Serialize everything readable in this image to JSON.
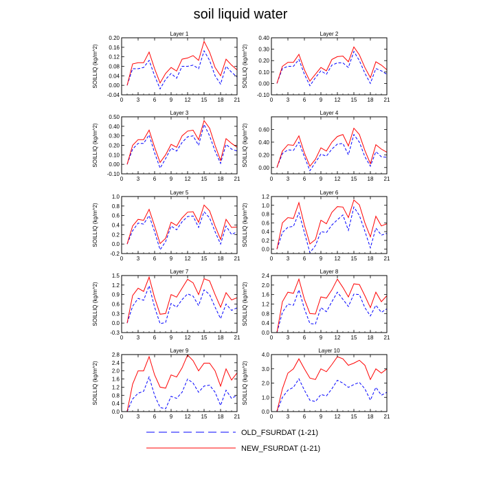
{
  "title": "soil liquid water",
  "legend": [
    {
      "label": "OLD_FSURDAT (1-21)",
      "color": "#0000ff",
      "dash": true
    },
    {
      "label": "NEW_FSURDAT (1-21)",
      "color": "#ff0000",
      "dash": false
    }
  ],
  "chart_data": [
    {
      "type": "line",
      "title": "Layer 1",
      "ylabel": "SOILLIQ  (kg/m^2)",
      "x": [
        1,
        2,
        3,
        4,
        5,
        6,
        7,
        8,
        9,
        10,
        11,
        12,
        13,
        14,
        15,
        16,
        17,
        18,
        19,
        20,
        21
      ],
      "xticks": [
        0,
        3,
        6,
        9,
        12,
        15,
        18,
        21
      ],
      "xlim": [
        0,
        21
      ],
      "yticks": [
        -0.04,
        0.0,
        0.04,
        0.08,
        0.12,
        0.16,
        0.2
      ],
      "ytick_labels": [
        "-0.04",
        "0.00",
        "0.04",
        "0.08",
        "0.12",
        "0.16",
        "0.20"
      ],
      "ylim": [
        -0.04,
        0.2
      ],
      "series": [
        {
          "name": "OLD_FSURDAT (1-21)",
          "values": [
            0.0,
            0.07,
            0.07,
            0.075,
            0.105,
            0.04,
            -0.015,
            0.025,
            0.05,
            0.03,
            0.08,
            0.08,
            0.085,
            0.07,
            0.145,
            0.105,
            0.04,
            0.005,
            0.08,
            0.055,
            0.035
          ]
        },
        {
          "name": "NEW_FSURDAT (1-21)",
          "values": [
            0.0,
            0.09,
            0.095,
            0.095,
            0.14,
            0.07,
            0.01,
            0.05,
            0.075,
            0.06,
            0.11,
            0.115,
            0.125,
            0.105,
            0.185,
            0.14,
            0.075,
            0.04,
            0.11,
            0.085,
            0.065
          ]
        }
      ]
    },
    {
      "type": "line",
      "title": "Layer 2",
      "ylabel": "SOILLIQ  (kg/m^2)",
      "x": [
        1,
        2,
        3,
        4,
        5,
        6,
        7,
        8,
        9,
        10,
        11,
        12,
        13,
        14,
        15,
        16,
        17,
        18,
        19,
        20,
        21
      ],
      "xticks": [
        0,
        3,
        6,
        9,
        12,
        15,
        18,
        21
      ],
      "xlim": [
        0,
        21
      ],
      "yticks": [
        -0.1,
        0.0,
        0.1,
        0.2,
        0.3,
        0.4
      ],
      "ytick_labels": [
        "-0.10",
        "0.00",
        "0.10",
        "0.20",
        "0.30",
        "0.40"
      ],
      "ylim": [
        -0.1,
        0.4
      ],
      "series": [
        {
          "name": "OLD_FSURDAT (1-21)",
          "values": [
            0.0,
            0.13,
            0.15,
            0.15,
            0.21,
            0.08,
            -0.02,
            0.05,
            0.11,
            0.08,
            0.16,
            0.18,
            0.18,
            0.14,
            0.28,
            0.2,
            0.09,
            0.0,
            0.13,
            0.11,
            0.08
          ]
        },
        {
          "name": "NEW_FSURDAT (1-21)",
          "values": [
            0.0,
            0.15,
            0.185,
            0.185,
            0.255,
            0.12,
            0.02,
            0.08,
            0.14,
            0.11,
            0.21,
            0.235,
            0.24,
            0.19,
            0.32,
            0.25,
            0.14,
            0.05,
            0.19,
            0.16,
            0.12
          ]
        }
      ]
    },
    {
      "type": "line",
      "title": "Layer 3",
      "ylabel": "SOILLIQ  (kg/m^2)",
      "x": [
        1,
        2,
        3,
        4,
        5,
        6,
        7,
        8,
        9,
        10,
        11,
        12,
        13,
        14,
        15,
        16,
        17,
        18,
        19,
        20,
        21
      ],
      "xticks": [
        0,
        3,
        6,
        9,
        12,
        15,
        18,
        21
      ],
      "xlim": [
        0,
        21
      ],
      "yticks": [
        -0.1,
        0.0,
        0.1,
        0.2,
        0.3,
        0.4,
        0.5
      ],
      "ytick_labels": [
        "-0.10",
        "0.00",
        "0.10",
        "0.20",
        "0.30",
        "0.40",
        "0.50"
      ],
      "ylim": [
        -0.1,
        0.5
      ],
      "series": [
        {
          "name": "OLD_FSURDAT (1-21)",
          "values": [
            0.0,
            0.16,
            0.22,
            0.22,
            0.31,
            0.12,
            -0.04,
            0.06,
            0.17,
            0.14,
            0.23,
            0.29,
            0.3,
            0.2,
            0.42,
            0.3,
            0.14,
            0.01,
            0.21,
            0.16,
            0.14
          ]
        },
        {
          "name": "NEW_FSURDAT (1-21)",
          "values": [
            0.0,
            0.2,
            0.26,
            0.26,
            0.36,
            0.18,
            0.02,
            0.1,
            0.21,
            0.18,
            0.3,
            0.35,
            0.36,
            0.26,
            0.46,
            0.38,
            0.2,
            0.04,
            0.27,
            0.22,
            0.18
          ]
        }
      ]
    },
    {
      "type": "line",
      "title": "Layer 4",
      "ylabel": "SOILLIQ  (kg/m^2)",
      "x": [
        1,
        2,
        3,
        4,
        5,
        6,
        7,
        8,
        9,
        10,
        11,
        12,
        13,
        14,
        15,
        16,
        17,
        18,
        19,
        20,
        21
      ],
      "xticks": [
        0,
        3,
        6,
        9,
        12,
        15,
        18,
        21
      ],
      "xlim": [
        0,
        21
      ],
      "yticks": [
        0.0,
        0.2,
        0.4,
        0.6
      ],
      "ytick_labels": [
        "0.00",
        "0.20",
        "0.40",
        "0.60"
      ],
      "ylim": [
        -0.1,
        0.8
      ],
      "series": [
        {
          "name": "OLD_FSURDAT (1-21)",
          "values": [
            0.0,
            0.22,
            0.28,
            0.27,
            0.4,
            0.17,
            -0.05,
            0.08,
            0.21,
            0.18,
            0.29,
            0.37,
            0.38,
            0.2,
            0.52,
            0.4,
            0.17,
            0.02,
            0.25,
            0.17,
            0.16
          ]
        },
        {
          "name": "NEW_FSURDAT (1-21)",
          "values": [
            0.0,
            0.26,
            0.36,
            0.35,
            0.5,
            0.23,
            0.02,
            0.13,
            0.31,
            0.26,
            0.4,
            0.49,
            0.52,
            0.34,
            0.62,
            0.52,
            0.27,
            0.06,
            0.36,
            0.29,
            0.24
          ]
        }
      ]
    },
    {
      "type": "line",
      "title": "Layer 5",
      "ylabel": "SOILLIQ  (kg/m^2)",
      "x": [
        1,
        2,
        3,
        4,
        5,
        6,
        7,
        8,
        9,
        10,
        11,
        12,
        13,
        14,
        15,
        16,
        17,
        18,
        19,
        20,
        21
      ],
      "xticks": [
        0,
        3,
        6,
        9,
        12,
        15,
        18,
        21
      ],
      "xlim": [
        0,
        21
      ],
      "yticks": [
        -0.2,
        0.0,
        0.2,
        0.4,
        0.6,
        0.8,
        1.0
      ],
      "ytick_labels": [
        "-0.2",
        "0.0",
        "0.2",
        "0.4",
        "0.6",
        "0.8",
        "1.0"
      ],
      "ylim": [
        -0.2,
        1.0
      ],
      "series": [
        {
          "name": "OLD_FSURDAT (1-21)",
          "values": [
            0.0,
            0.28,
            0.44,
            0.42,
            0.6,
            0.26,
            -0.12,
            0.05,
            0.38,
            0.3,
            0.47,
            0.58,
            0.59,
            0.35,
            0.68,
            0.55,
            0.26,
            0.0,
            0.38,
            0.2,
            0.26
          ]
        },
        {
          "name": "NEW_FSURDAT (1-21)",
          "values": [
            0.0,
            0.38,
            0.52,
            0.5,
            0.73,
            0.38,
            0.01,
            0.12,
            0.46,
            0.39,
            0.55,
            0.67,
            0.68,
            0.46,
            0.82,
            0.7,
            0.38,
            0.1,
            0.52,
            0.35,
            0.36
          ]
        }
      ]
    },
    {
      "type": "line",
      "title": "Layer 6",
      "ylabel": "SOILLIQ  (kg/m^2)",
      "x": [
        1,
        2,
        3,
        4,
        5,
        6,
        7,
        8,
        9,
        10,
        11,
        12,
        13,
        14,
        15,
        16,
        17,
        18,
        19,
        20,
        21
      ],
      "xticks": [
        0,
        3,
        6,
        9,
        12,
        15,
        18,
        21
      ],
      "xlim": [
        0,
        21
      ],
      "yticks": [
        0.0,
        0.2,
        0.4,
        0.6,
        0.8,
        1.0,
        1.2
      ],
      "ytick_labels": [
        "0.0",
        "0.2",
        "0.4",
        "0.6",
        "0.8",
        "1.0",
        "1.2"
      ],
      "ylim": [
        -0.1,
        1.2
      ],
      "series": [
        {
          "name": "OLD_FSURDAT (1-21)",
          "values": [
            0.0,
            0.38,
            0.5,
            0.52,
            0.83,
            0.38,
            -0.08,
            0.08,
            0.4,
            0.38,
            0.55,
            0.67,
            0.78,
            0.43,
            0.96,
            0.77,
            0.41,
            0.03,
            0.48,
            0.32,
            0.36
          ]
        },
        {
          "name": "NEW_FSURDAT (1-21)",
          "values": [
            0.0,
            0.6,
            0.72,
            0.7,
            1.06,
            0.55,
            0.12,
            0.22,
            0.66,
            0.58,
            0.84,
            0.97,
            0.96,
            0.72,
            1.12,
            1.01,
            0.6,
            0.28,
            0.75,
            0.53,
            0.58
          ]
        }
      ]
    },
    {
      "type": "line",
      "title": "Layer 7",
      "ylabel": "SOILLIQ  (kg/m^2)",
      "x": [
        1,
        2,
        3,
        4,
        5,
        6,
        7,
        8,
        9,
        10,
        11,
        12,
        13,
        14,
        15,
        16,
        17,
        18,
        19,
        20,
        21
      ],
      "xticks": [
        0,
        3,
        6,
        9,
        12,
        15,
        18,
        21
      ],
      "xlim": [
        0,
        21
      ],
      "yticks": [
        -0.3,
        0.0,
        0.3,
        0.6,
        0.9,
        1.2,
        1.5
      ],
      "ytick_labels": [
        "-0.3",
        "0.0",
        "0.3",
        "0.6",
        "0.9",
        "1.2",
        "1.5"
      ],
      "ylim": [
        -0.3,
        1.5
      ],
      "series": [
        {
          "name": "OLD_FSURDAT (1-21)",
          "values": [
            0.0,
            0.53,
            0.78,
            0.72,
            1.18,
            0.5,
            -0.02,
            0.02,
            0.62,
            0.5,
            0.74,
            0.92,
            0.85,
            0.55,
            1.05,
            0.9,
            0.5,
            0.14,
            0.6,
            0.4,
            0.48
          ]
        },
        {
          "name": "NEW_FSURDAT (1-21)",
          "values": [
            0.0,
            0.87,
            1.1,
            1.0,
            1.45,
            0.8,
            0.28,
            0.3,
            0.9,
            0.82,
            1.1,
            1.38,
            1.27,
            0.9,
            1.4,
            1.33,
            0.9,
            0.5,
            0.96,
            0.73,
            0.8
          ]
        }
      ]
    },
    {
      "type": "line",
      "title": "Layer 8",
      "ylabel": "SOILLIQ  (kg/m^2)",
      "x": [
        1,
        2,
        3,
        4,
        5,
        6,
        7,
        8,
        9,
        10,
        11,
        12,
        13,
        14,
        15,
        16,
        17,
        18,
        19,
        20,
        21
      ],
      "xticks": [
        0,
        3,
        6,
        9,
        12,
        15,
        18,
        21
      ],
      "xlim": [
        0,
        21
      ],
      "yticks": [
        0.0,
        0.4,
        0.8,
        1.2,
        1.6,
        2.0,
        2.4
      ],
      "ytick_labels": [
        "0.0",
        "0.4",
        "0.8",
        "1.2",
        "1.6",
        "2.0",
        "2.4"
      ],
      "ylim": [
        0.0,
        2.4
      ],
      "series": [
        {
          "name": "OLD_FSURDAT (1-21)",
          "values": [
            0.0,
            0.85,
            1.2,
            1.15,
            1.8,
            1.0,
            0.38,
            0.36,
            1.05,
            0.88,
            1.3,
            1.7,
            1.4,
            1.1,
            1.62,
            1.6,
            1.05,
            0.7,
            1.15,
            0.85,
            1.0
          ]
        },
        {
          "name": "NEW_FSURDAT (1-21)",
          "values": [
            0.0,
            1.3,
            1.7,
            1.65,
            2.25,
            1.4,
            0.8,
            0.78,
            1.5,
            1.45,
            1.8,
            2.25,
            1.9,
            1.5,
            2.05,
            2.02,
            1.55,
            1.05,
            1.7,
            1.3,
            1.55
          ]
        }
      ]
    },
    {
      "type": "line",
      "title": "Layer 9",
      "ylabel": "SOILLIQ  (kg/m^2)",
      "x": [
        1,
        2,
        3,
        4,
        5,
        6,
        7,
        8,
        9,
        10,
        11,
        12,
        13,
        14,
        15,
        16,
        17,
        18,
        19,
        20,
        21
      ],
      "xticks": [
        0,
        3,
        6,
        9,
        12,
        15,
        18,
        21
      ],
      "xlim": [
        0,
        21
      ],
      "yticks": [
        0.0,
        0.4,
        0.8,
        1.2,
        1.6,
        2.0,
        2.4,
        2.8
      ],
      "ytick_labels": [
        "0.0",
        "0.4",
        "0.8",
        "1.2",
        "1.6",
        "2.0",
        "2.4",
        "2.8"
      ],
      "ylim": [
        0.0,
        2.8
      ],
      "series": [
        {
          "name": "OLD_FSURDAT (1-21)",
          "values": [
            0.0,
            0.62,
            0.9,
            1.0,
            1.7,
            0.8,
            0.2,
            0.14,
            0.75,
            0.65,
            0.95,
            1.6,
            1.4,
            0.95,
            1.25,
            1.3,
            0.95,
            0.3,
            1.05,
            0.65,
            0.8
          ]
        },
        {
          "name": "NEW_FSURDAT (1-21)",
          "values": [
            0.0,
            1.35,
            2.0,
            2.0,
            2.7,
            1.8,
            1.2,
            1.15,
            1.8,
            1.7,
            2.15,
            2.78,
            2.5,
            2.0,
            2.38,
            2.38,
            2.0,
            1.25,
            2.1,
            1.55,
            1.9
          ]
        }
      ]
    },
    {
      "type": "line",
      "title": "Layer 10",
      "ylabel": "SOILLIQ  (kg/m^2)",
      "x": [
        1,
        2,
        3,
        4,
        5,
        6,
        7,
        8,
        9,
        10,
        11,
        12,
        13,
        14,
        15,
        16,
        17,
        18,
        19,
        20,
        21
      ],
      "xticks": [
        0,
        3,
        6,
        9,
        12,
        15,
        18,
        21
      ],
      "xlim": [
        0,
        21
      ],
      "yticks": [
        0.0,
        1.0,
        2.0,
        3.0,
        4.0
      ],
      "ytick_labels": [
        "0.0",
        "1.0",
        "2.0",
        "3.0",
        "4.0"
      ],
      "ylim": [
        0.0,
        4.0
      ],
      "series": [
        {
          "name": "OLD_FSURDAT (1-21)",
          "values": [
            0.0,
            1.0,
            1.5,
            1.7,
            2.3,
            1.5,
            0.8,
            0.7,
            1.2,
            1.1,
            1.6,
            2.2,
            2.0,
            1.7,
            1.9,
            2.05,
            1.6,
            0.8,
            1.7,
            1.15,
            1.35
          ]
        },
        {
          "name": "NEW_FSURDAT (1-21)",
          "values": [
            0.0,
            1.6,
            2.7,
            3.0,
            3.7,
            3.0,
            2.35,
            2.25,
            3.0,
            2.8,
            3.3,
            3.85,
            3.7,
            3.25,
            3.4,
            3.6,
            3.25,
            2.25,
            3.0,
            2.7,
            3.0
          ]
        }
      ]
    }
  ]
}
